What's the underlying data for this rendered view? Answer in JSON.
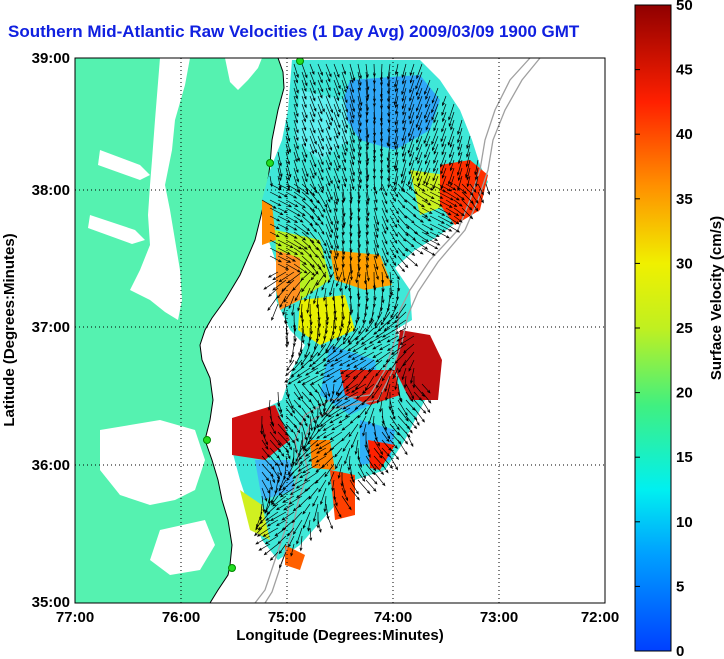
{
  "title": "Southern Mid-Atlantic Raw Velocities (1 Day Avg) 2009/03/09 1900 GMT",
  "map": {
    "xlabel": "Longitude (Degrees:Minutes)",
    "ylabel": "Latitude (Degrees:Minutes)",
    "x_ticks": [
      "77:00",
      "76:00",
      "75:00",
      "74:00",
      "73:00",
      "72:00"
    ],
    "y_ticks": [
      "39:00",
      "38:00",
      "37:00",
      "36:00",
      "35:00"
    ],
    "lon_range": [
      -77,
      -72
    ],
    "lat_range": [
      35,
      39
    ]
  },
  "colorbar": {
    "label": "Surface Velocity (cm/s)",
    "ticks": [
      "0",
      "5",
      "10",
      "15",
      "20",
      "25",
      "30",
      "35",
      "40",
      "45",
      "50"
    ],
    "range": [
      0,
      50
    ]
  },
  "colors": {
    "title": "#1020e0",
    "land": "#55f2b0",
    "station": "#22dd22",
    "bathymetry": "#a0a0a0"
  }
}
